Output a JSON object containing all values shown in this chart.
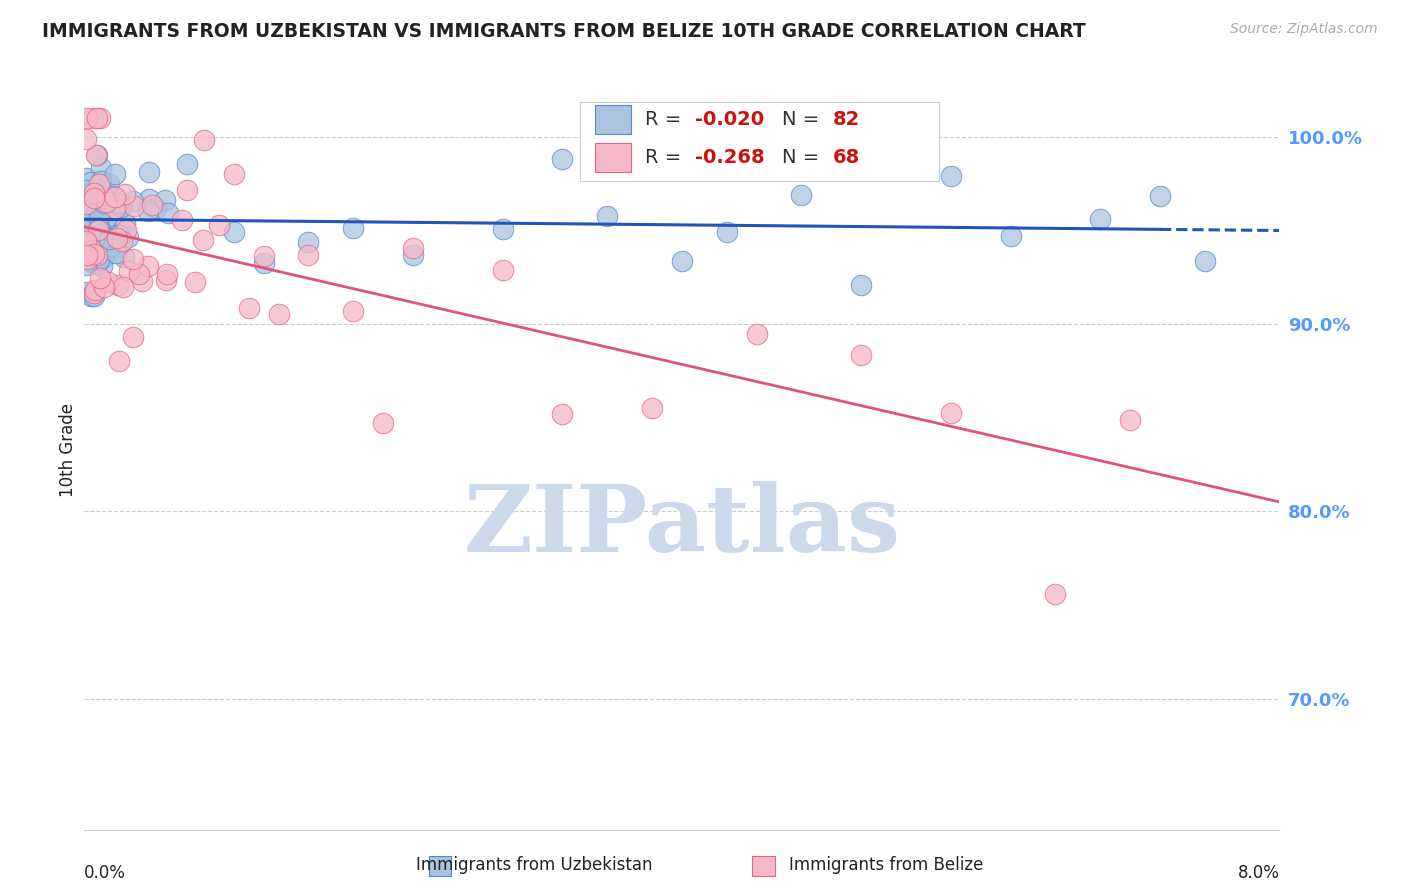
{
  "title": "IMMIGRANTS FROM UZBEKISTAN VS IMMIGRANTS FROM BELIZE 10TH GRADE CORRELATION CHART",
  "source": "Source: ZipAtlas.com",
  "ylabel": "10th Grade",
  "xmin": 0.0,
  "xmax": 8.0,
  "ymin": 63.0,
  "ymax": 103.5,
  "yticks": [
    100.0,
    90.0,
    80.0,
    70.0
  ],
  "ytick_labels": [
    "100.0%",
    "90.0%",
    "80.0%",
    "70.0%"
  ],
  "series1_color": "#aac4df",
  "series2_color": "#f5b8c8",
  "series1_edge": "#5588cc",
  "series2_edge": "#e06688",
  "series1_line_color": "#2255bb",
  "series2_line_color": "#dd5577",
  "background_color": "#ffffff",
  "watermark": "ZIPatlas",
  "watermark_color": "#ccd9ea",
  "series1_name": "Immigrants from Uzbekistan",
  "series2_name": "Immigrants from Belize",
  "grid_color": "#cccccc",
  "title_color": "#222222",
  "right_tick_color": "#5599ff",
  "legend_text_color": "#333333",
  "legend_value_color": "#cc1111",
  "source_color": "#aaaaaa",
  "uzb_trendline_start_x": 0.0,
  "uzb_trendline_end_solid_x": 7.2,
  "uzb_trendline_end_x": 8.0,
  "uzb_trendline_y_at_0": 95.6,
  "uzb_trendline_y_at_8": 95.0,
  "bel_trendline_start_x": 0.0,
  "bel_trendline_end_x": 8.0,
  "bel_trendline_y_at_0": 95.2,
  "bel_trendline_y_at_8": 80.5
}
